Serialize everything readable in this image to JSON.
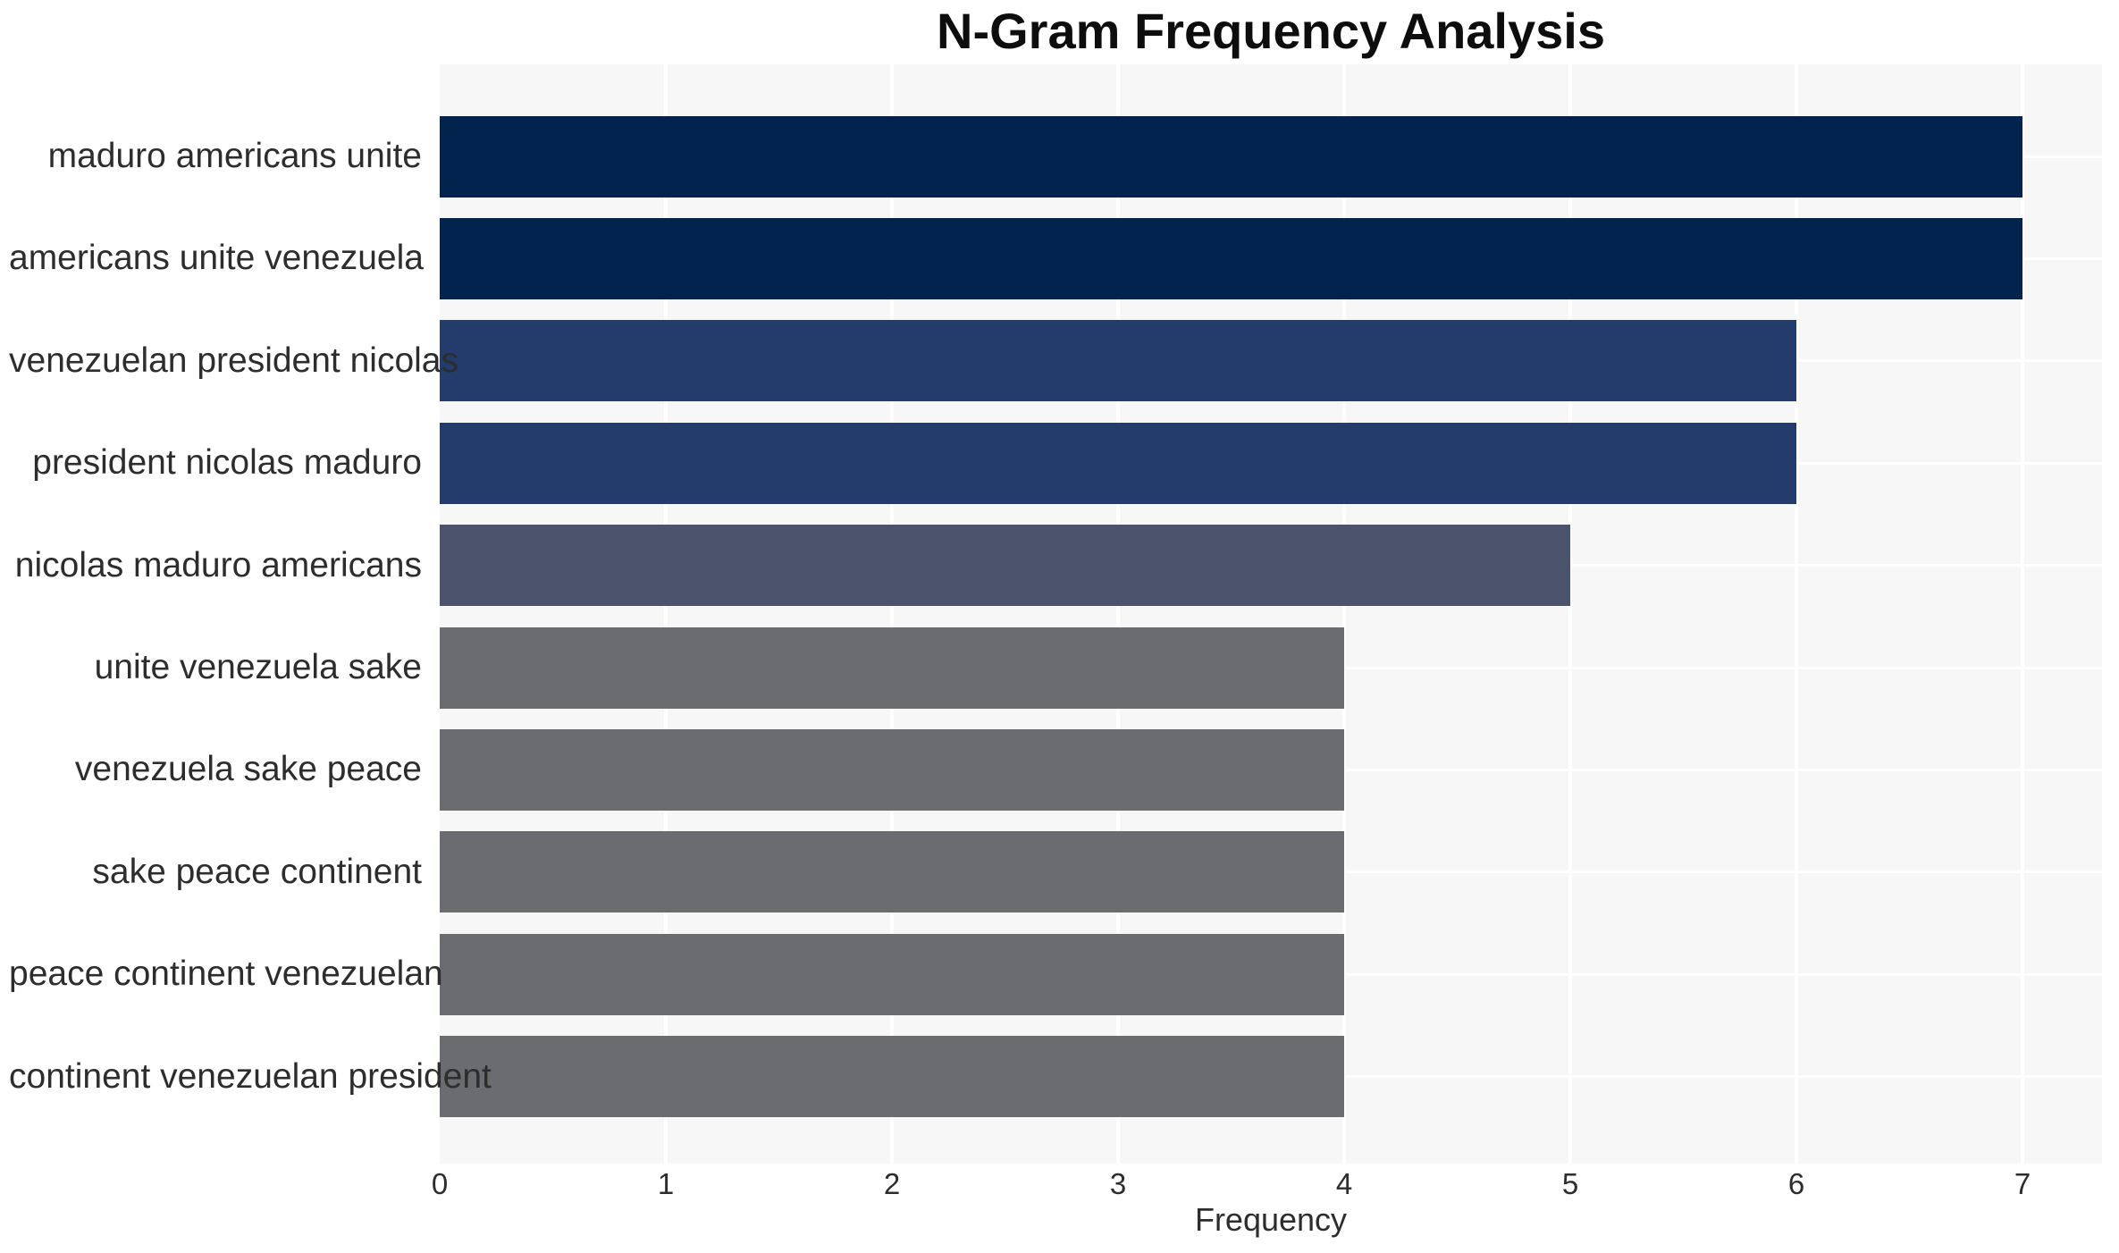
{
  "chart_data": {
    "type": "bar",
    "orientation": "horizontal",
    "title": "N-Gram Frequency Analysis",
    "xlabel": "Frequency",
    "ylabel": "",
    "categories": [
      "maduro americans unite",
      "americans unite venezuela",
      "venezuelan president nicolas",
      "president nicolas maduro",
      "nicolas maduro americans",
      "unite venezuela sake",
      "venezuela sake peace",
      "sake peace continent",
      "peace continent venezuelan",
      "continent venezuelan president"
    ],
    "values": [
      7,
      7,
      6,
      6,
      5,
      4,
      4,
      4,
      4,
      4
    ],
    "bar_colors": [
      "#02234e",
      "#02234e",
      "#243c6c",
      "#243c6c",
      "#4c546d",
      "#6b6c70",
      "#6b6c70",
      "#6b6c70",
      "#6b6c70",
      "#6b6c70"
    ],
    "xticks": [
      0,
      1,
      2,
      3,
      4,
      5,
      6,
      7
    ],
    "xlim": [
      0,
      7.35
    ],
    "grid": "on",
    "legend": "none",
    "colors": {
      "panel_background": "#f7f7f7",
      "gridline": "#ffffff",
      "text": "#2d2d2d",
      "title_text": "#0d0d0d",
      "figure_background": "#ffffff"
    }
  }
}
